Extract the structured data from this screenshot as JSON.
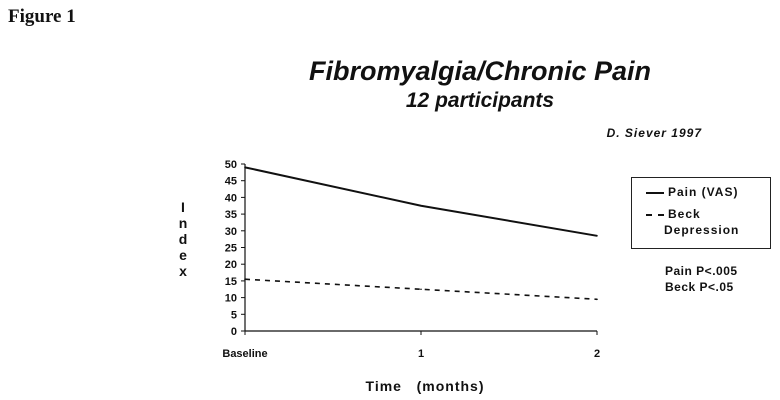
{
  "figure_label": "Figure 1",
  "credit": "D. Siever   1997",
  "stats": [
    "Pain P<.005",
    "Beck P<.05"
  ],
  "colors": {
    "line": "#111111",
    "background": "#ffffff"
  },
  "chart_data": {
    "type": "line",
    "title": "Fibromyalgia/Chronic Pain",
    "subtitle": "12 participants",
    "xlabel": "Time   (months)",
    "ylabel": "Index",
    "ylabel_letters": [
      "I",
      "n",
      "d",
      "e",
      "x"
    ],
    "categories": [
      "Baseline",
      "1",
      "2"
    ],
    "ylim": [
      0,
      50
    ],
    "yticks": [
      0,
      5,
      10,
      15,
      20,
      25,
      30,
      35,
      40,
      45,
      50
    ],
    "grid": false,
    "legend_position": "right",
    "series": [
      {
        "name": "Pain (VAS)",
        "values": [
          49,
          37.5,
          28.5
        ],
        "style": "solid"
      },
      {
        "name": "Beck Depression",
        "name_lines": [
          "Beck",
          "Depression"
        ],
        "values": [
          15.5,
          12.5,
          9.5
        ],
        "style": "dashed"
      }
    ]
  }
}
